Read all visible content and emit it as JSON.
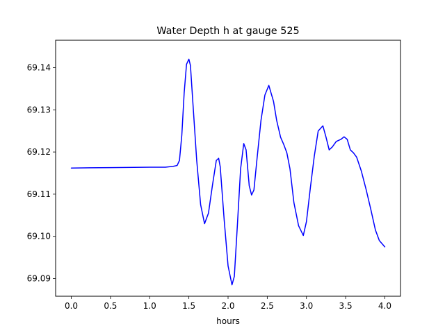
{
  "chart_data": {
    "type": "line",
    "title": "Water Depth h at gauge 525",
    "xlabel": "hours",
    "ylabel": "",
    "xlim": [
      -0.2,
      4.2
    ],
    "ylim": [
      69.0858,
      69.1465
    ],
    "grid": false,
    "line_color": "#0000ff",
    "x_ticks": [
      {
        "value": 0.0,
        "label": "0.0"
      },
      {
        "value": 0.5,
        "label": "0.5"
      },
      {
        "value": 1.0,
        "label": "1.0"
      },
      {
        "value": 1.5,
        "label": "1.5"
      },
      {
        "value": 2.0,
        "label": "2.0"
      },
      {
        "value": 2.5,
        "label": "2.5"
      },
      {
        "value": 3.0,
        "label": "3.0"
      },
      {
        "value": 3.5,
        "label": "3.5"
      },
      {
        "value": 4.0,
        "label": "4.0"
      }
    ],
    "y_ticks": [
      {
        "value": 69.09,
        "label": "69.09"
      },
      {
        "value": 69.1,
        "label": "69.10"
      },
      {
        "value": 69.11,
        "label": "69.11"
      },
      {
        "value": 69.12,
        "label": "69.12"
      },
      {
        "value": 69.13,
        "label": "69.13"
      },
      {
        "value": 69.14,
        "label": "69.14"
      }
    ],
    "series": [
      {
        "x": [
          0.0,
          0.5,
          1.0,
          1.2,
          1.3,
          1.35,
          1.38,
          1.41,
          1.44,
          1.47,
          1.5,
          1.52,
          1.55,
          1.6,
          1.65,
          1.7,
          1.75,
          1.8,
          1.85,
          1.88,
          1.9,
          1.95,
          2.0,
          2.05,
          2.08,
          2.12,
          2.16,
          2.2,
          2.23,
          2.27,
          2.3,
          2.33,
          2.37,
          2.42,
          2.47,
          2.52,
          2.58,
          2.62,
          2.67,
          2.71,
          2.75,
          2.79,
          2.84,
          2.9,
          2.96,
          3.0,
          3.05,
          3.1,
          3.15,
          3.21,
          3.25,
          3.29,
          3.33,
          3.38,
          3.44,
          3.48,
          3.52,
          3.56,
          3.6,
          3.64,
          3.7,
          3.76,
          3.82,
          3.88,
          3.93,
          4.0
        ],
        "y": [
          69.1162,
          69.1163,
          69.1164,
          69.1164,
          69.1166,
          69.1168,
          69.118,
          69.124,
          69.134,
          69.1408,
          69.142,
          69.1405,
          69.132,
          69.118,
          69.1075,
          69.103,
          69.1055,
          69.112,
          69.118,
          69.1185,
          69.1165,
          69.104,
          69.093,
          69.0885,
          69.0905,
          69.103,
          69.116,
          69.122,
          69.1205,
          69.112,
          69.1098,
          69.111,
          69.1185,
          69.1275,
          69.1335,
          69.1358,
          69.132,
          69.1275,
          69.1235,
          69.1218,
          69.1198,
          69.116,
          69.108,
          69.1025,
          69.1002,
          69.1035,
          69.1115,
          69.119,
          69.125,
          69.1262,
          69.1235,
          69.1205,
          69.1212,
          69.1225,
          69.123,
          69.1236,
          69.123,
          69.1205,
          69.1198,
          69.1188,
          69.1155,
          69.1112,
          69.1065,
          69.1015,
          69.099,
          69.0975
        ]
      }
    ]
  }
}
